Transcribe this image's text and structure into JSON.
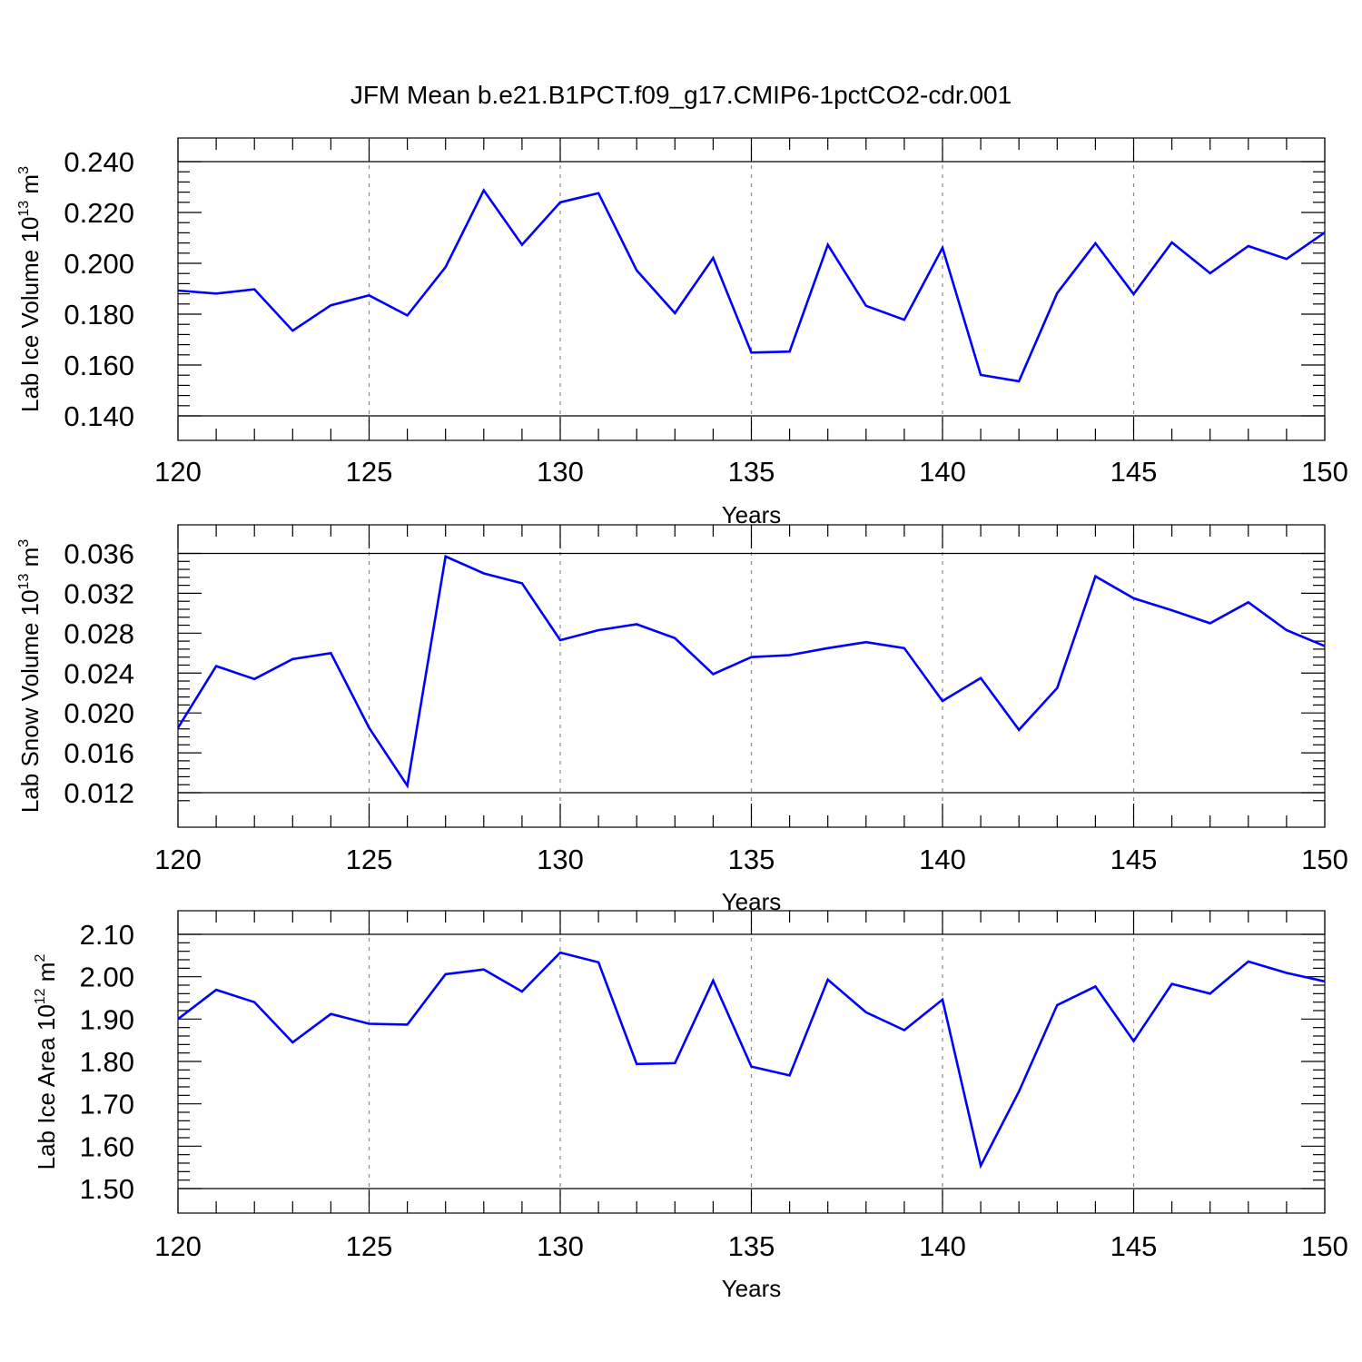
{
  "figure": {
    "title": "JFM Mean b.e21.B1PCT.f09_g17.CMIP6-1pctCO2-cdr.001"
  },
  "chart_data": [
    {
      "type": "line",
      "ylabel": {
        "base": "Lab Ice Volume 10",
        "exp": "13",
        "unit": " m",
        "unit_exp": "3"
      },
      "xlabel": "Years",
      "xlim": [
        120,
        150
      ],
      "ylim": [
        0.14,
        0.24
      ],
      "xticks": [
        "120",
        "125",
        "130",
        "135",
        "140",
        "145",
        "150"
      ],
      "yticks": [
        "0.140",
        "0.160",
        "0.180",
        "0.200",
        "0.220",
        "0.240"
      ],
      "grid": "vertical-dashed",
      "line_color": "#0000ff",
      "x": [
        120,
        121,
        122,
        123,
        124,
        125,
        126,
        127,
        128,
        129,
        130,
        131,
        132,
        133,
        134,
        135,
        136,
        137,
        138,
        139,
        140,
        141,
        142,
        143,
        144,
        145,
        146,
        147,
        148,
        149,
        150
      ],
      "values": [
        0.1893,
        0.1881,
        0.1898,
        0.1735,
        0.1835,
        0.1874,
        0.1795,
        0.1985,
        0.2287,
        0.2073,
        0.224,
        0.2276,
        0.1972,
        0.1804,
        0.2021,
        0.1649,
        0.1653,
        0.2073,
        0.1833,
        0.1778,
        0.2061,
        0.1561,
        0.1536,
        0.1883,
        0.2079,
        0.1879,
        0.2082,
        0.1961,
        0.2068,
        0.2017,
        0.2121
      ]
    },
    {
      "type": "line",
      "ylabel": {
        "base": "Lab Snow Volume 10",
        "exp": "13",
        "unit": " m",
        "unit_exp": "3"
      },
      "xlabel": "Years",
      "xlim": [
        120,
        150
      ],
      "ylim": [
        0.011,
        0.0365
      ],
      "xticks": [
        "120",
        "125",
        "130",
        "135",
        "140",
        "145",
        "150"
      ],
      "yticks": [
        "0.012",
        "0.016",
        "0.020",
        "0.024",
        "0.028",
        "0.032",
        "0.036"
      ],
      "grid": "vertical-dashed",
      "line_color": "#0000ff",
      "x": [
        120,
        121,
        122,
        123,
        124,
        125,
        126,
        127,
        128,
        129,
        130,
        131,
        132,
        133,
        134,
        135,
        136,
        137,
        138,
        139,
        140,
        141,
        142,
        143,
        144,
        145,
        146,
        147,
        148,
        149,
        150
      ],
      "values": [
        0.0185,
        0.0247,
        0.0234,
        0.0254,
        0.026,
        0.0185,
        0.0127,
        0.0357,
        0.034,
        0.033,
        0.0273,
        0.0283,
        0.0289,
        0.0275,
        0.0239,
        0.0256,
        0.0258,
        0.0265,
        0.0271,
        0.0265,
        0.0212,
        0.0235,
        0.0183,
        0.0225,
        0.0337,
        0.0315,
        0.0303,
        0.029,
        0.0311,
        0.0283,
        0.0267
      ]
    },
    {
      "type": "line",
      "ylabel": {
        "base": "Lab Ice Area 10",
        "exp": "12",
        "unit": " m",
        "unit_exp": "2"
      },
      "xlabel": "Years",
      "xlim": [
        120,
        150
      ],
      "ylim": [
        1.5,
        2.1
      ],
      "xticks": [
        "120",
        "125",
        "130",
        "135",
        "140",
        "145",
        "150"
      ],
      "yticks": [
        "1.50",
        "1.60",
        "1.70",
        "1.80",
        "1.90",
        "2.00",
        "2.10"
      ],
      "grid": "vertical-dashed",
      "line_color": "#0000ff",
      "x": [
        120,
        121,
        122,
        123,
        124,
        125,
        126,
        127,
        128,
        129,
        130,
        131,
        132,
        133,
        134,
        135,
        136,
        137,
        138,
        139,
        140,
        141,
        142,
        143,
        144,
        145,
        146,
        147,
        148,
        149,
        150
      ],
      "values": [
        1.9,
        1.969,
        1.94,
        1.845,
        1.912,
        1.889,
        1.887,
        2.006,
        2.017,
        1.965,
        2.057,
        2.034,
        1.794,
        1.796,
        1.991,
        1.788,
        1.767,
        1.993,
        1.916,
        1.874,
        1.946,
        1.554,
        1.729,
        1.933,
        1.977,
        1.848,
        1.983,
        1.96,
        2.036,
        2.009,
        1.989
      ]
    }
  ]
}
